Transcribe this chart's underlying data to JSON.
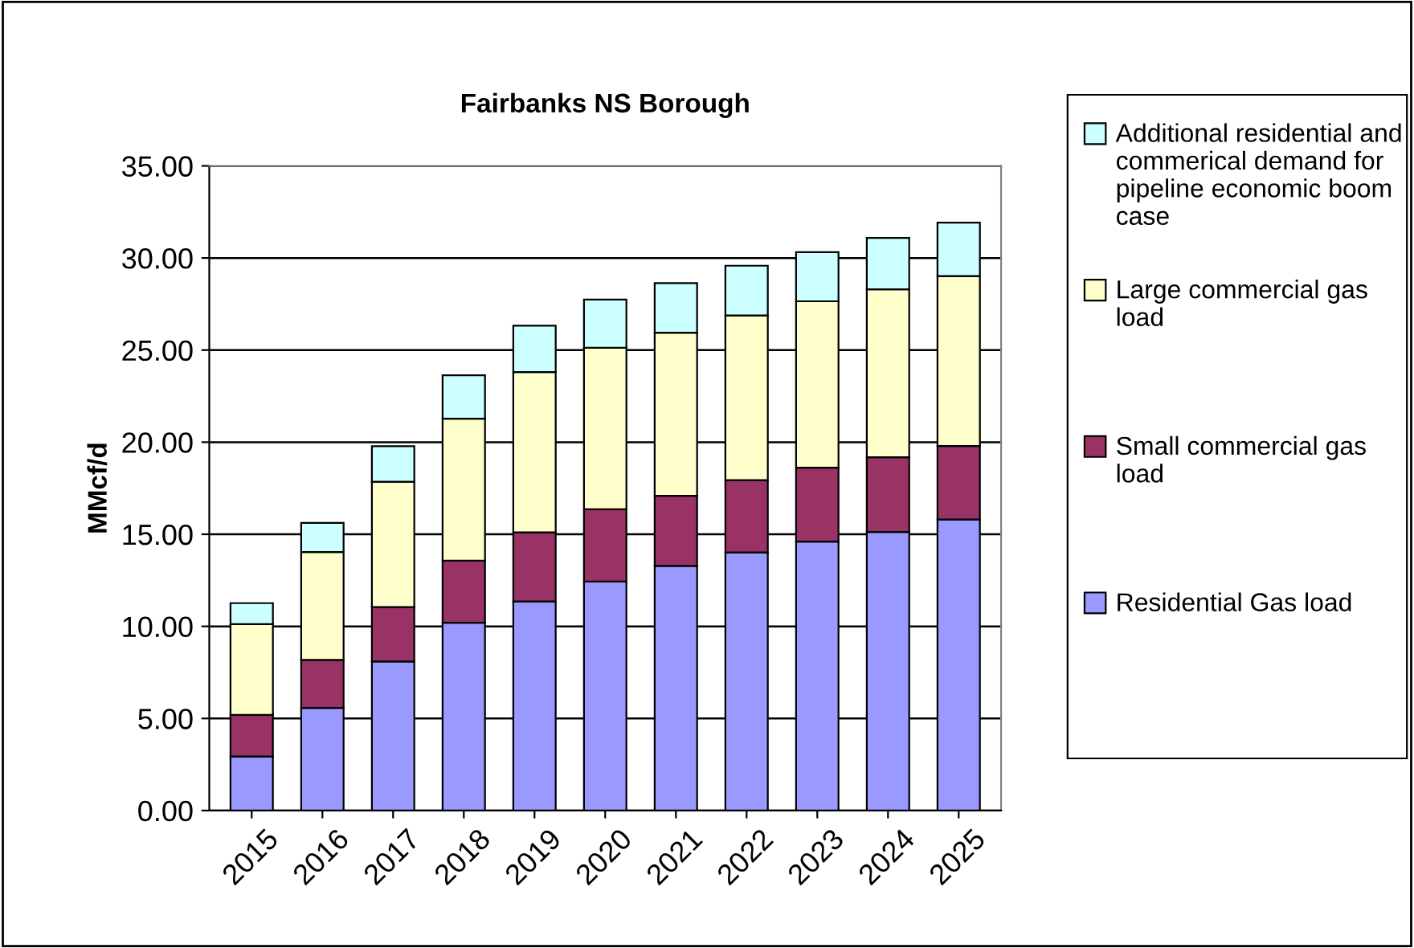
{
  "chart_data": {
    "type": "bar",
    "stacked": true,
    "title": "Fairbanks NS Borough",
    "ylabel": "MMcf/d",
    "categories": [
      "2015",
      "2016",
      "2017",
      "2018",
      "2019",
      "2020",
      "2021",
      "2022",
      "2023",
      "2024",
      "2025"
    ],
    "series": [
      {
        "name": "Residential Gas load",
        "color": "#9999ff",
        "values": [
          2.93,
          5.57,
          8.09,
          10.2,
          11.35,
          12.43,
          13.28,
          14.01,
          14.6,
          15.13,
          15.8
        ]
      },
      {
        "name": "Small commercial gas load",
        "color": "#993366",
        "values": [
          2.26,
          2.61,
          2.96,
          3.37,
          3.75,
          3.93,
          3.81,
          3.93,
          4.02,
          4.05,
          3.99
        ]
      },
      {
        "name": "Large commercial gas load",
        "color": "#ffffcc",
        "values": [
          4.93,
          5.86,
          6.8,
          7.71,
          8.71,
          8.77,
          8.85,
          8.94,
          9.03,
          9.12,
          9.23
        ]
      },
      {
        "name": "Additional residential and commerical demand for pipeline economic boom case",
        "color": "#ccffff",
        "values": [
          1.14,
          1.58,
          1.93,
          2.35,
          2.52,
          2.61,
          2.7,
          2.7,
          2.67,
          2.79,
          2.9
        ]
      }
    ],
    "ylim": [
      0,
      35
    ],
    "yticks": [
      {
        "value": 0,
        "label": "0.00"
      },
      {
        "value": 5,
        "label": "5.00"
      },
      {
        "value": 10,
        "label": "10.00"
      },
      {
        "value": 15,
        "label": "15.00"
      },
      {
        "value": 20,
        "label": "20.00"
      },
      {
        "value": 25,
        "label": "25.00"
      },
      {
        "value": 30,
        "label": "30.00"
      },
      {
        "value": 35,
        "label": "35.00"
      }
    ],
    "grid": "y",
    "legend": "right"
  }
}
